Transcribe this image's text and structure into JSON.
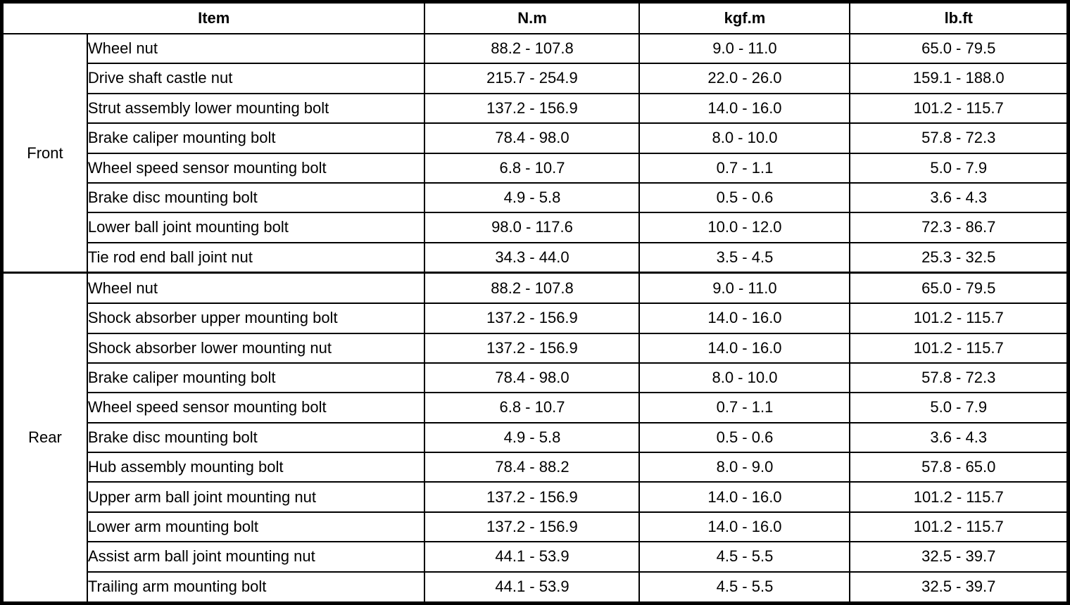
{
  "colors": {
    "border": "#000000",
    "background": "#ffffff",
    "text": "#000000"
  },
  "table": {
    "headers": {
      "item": "Item",
      "nm": "N.m",
      "kgfm": "kgf.m",
      "lbft": "lb.ft"
    },
    "sections": [
      {
        "group": "Front",
        "rows": [
          {
            "item": "Wheel nut",
            "nm": "88.2 - 107.8",
            "kgfm": "9.0 - 11.0",
            "lbft": "65.0 - 79.5"
          },
          {
            "item": "Drive shaft castle nut",
            "nm": "215.7 - 254.9",
            "kgfm": "22.0 - 26.0",
            "lbft": "159.1 - 188.0"
          },
          {
            "item": "Strut assembly lower mounting bolt",
            "nm": "137.2 - 156.9",
            "kgfm": "14.0 - 16.0",
            "lbft": "101.2 - 115.7"
          },
          {
            "item": "Brake caliper mounting bolt",
            "nm": "78.4 - 98.0",
            "kgfm": "8.0 - 10.0",
            "lbft": "57.8 - 72.3"
          },
          {
            "item": "Wheel speed sensor mounting bolt",
            "nm": "6.8 - 10.7",
            "kgfm": "0.7 - 1.1",
            "lbft": "5.0 - 7.9"
          },
          {
            "item": "Brake disc mounting bolt",
            "nm": "4.9 - 5.8",
            "kgfm": "0.5 - 0.6",
            "lbft": "3.6 - 4.3"
          },
          {
            "item": "Lower ball joint mounting bolt",
            "nm": "98.0 - 117.6",
            "kgfm": "10.0 - 12.0",
            "lbft": "72.3 - 86.7"
          },
          {
            "item": "Tie rod end ball joint nut",
            "nm": "34.3 - 44.0",
            "kgfm": "3.5 - 4.5",
            "lbft": "25.3 - 32.5"
          }
        ]
      },
      {
        "group": "Rear",
        "rows": [
          {
            "item": "Wheel nut",
            "nm": "88.2 - 107.8",
            "kgfm": "9.0 - 11.0",
            "lbft": "65.0 - 79.5"
          },
          {
            "item": "Shock absorber upper mounting bolt",
            "nm": "137.2 - 156.9",
            "kgfm": "14.0 - 16.0",
            "lbft": "101.2 - 115.7"
          },
          {
            "item": "Shock absorber lower mounting nut",
            "nm": "137.2 - 156.9",
            "kgfm": "14.0 - 16.0",
            "lbft": "101.2 - 115.7"
          },
          {
            "item": "Brake caliper mounting bolt",
            "nm": "78.4 - 98.0",
            "kgfm": "8.0 - 10.0",
            "lbft": "57.8 - 72.3"
          },
          {
            "item": "Wheel speed sensor mounting bolt",
            "nm": "6.8 - 10.7",
            "kgfm": "0.7 - 1.1",
            "lbft": "5.0 - 7.9"
          },
          {
            "item": "Brake disc mounting bolt",
            "nm": "4.9 - 5.8",
            "kgfm": "0.5 - 0.6",
            "lbft": "3.6 - 4.3"
          },
          {
            "item": "Hub assembly mounting bolt",
            "nm": "78.4 - 88.2",
            "kgfm": "8.0 - 9.0",
            "lbft": "57.8 - 65.0"
          },
          {
            "item": "Upper arm ball joint mounting nut",
            "nm": "137.2 - 156.9",
            "kgfm": "14.0 - 16.0",
            "lbft": "101.2 - 115.7"
          },
          {
            "item": "Lower arm mounting bolt",
            "nm": "137.2 - 156.9",
            "kgfm": "14.0 - 16.0",
            "lbft": "101.2 - 115.7"
          },
          {
            "item": "Assist arm ball joint mounting nut",
            "nm": "44.1 - 53.9",
            "kgfm": "4.5 - 5.5",
            "lbft": "32.5 - 39.7"
          },
          {
            "item": "Trailing arm mounting bolt",
            "nm": "44.1 - 53.9",
            "kgfm": "4.5 - 5.5",
            "lbft": "32.5 - 39.7"
          }
        ]
      }
    ]
  }
}
